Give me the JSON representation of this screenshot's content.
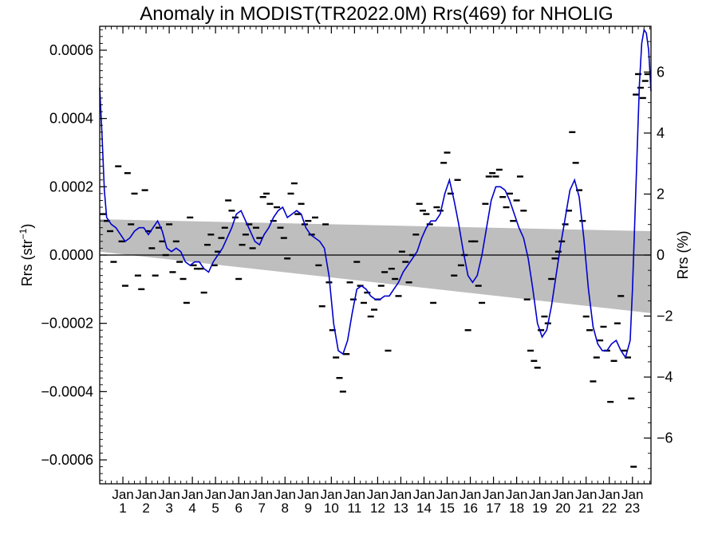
{
  "chart_data": {
    "type": "scatter",
    "title": "Anomaly in MODIST(TR2022.0M) Rrs(469) for NHOLIG",
    "ylabel_left_base": "Rrs (str",
    "ylabel_left_sup": "−1",
    "ylabel_left_end": ")",
    "ylabel_right": "Rrs (%)",
    "ylim_left": [
      -0.00067,
      0.00067
    ],
    "ylim_right": [
      -7.5,
      7.5
    ],
    "xlim": [
      0,
      23.8
    ],
    "yticks_left": [
      {
        "v": 0.0006,
        "label": "0.0006"
      },
      {
        "v": 0.0004,
        "label": "0.0004"
      },
      {
        "v": 0.0002,
        "label": "0.0002"
      },
      {
        "v": 0.0,
        "label": "0.0000"
      },
      {
        "v": -0.0002,
        "label": "−0.0002"
      },
      {
        "v": -0.0004,
        "label": "−0.0004"
      },
      {
        "v": -0.0006,
        "label": "−0.0006"
      }
    ],
    "yticks_right": [
      {
        "v": 6,
        "label": "6"
      },
      {
        "v": 4,
        "label": "4"
      },
      {
        "v": 2,
        "label": "2"
      },
      {
        "v": 0,
        "label": "0"
      },
      {
        "v": -2,
        "label": "−2"
      },
      {
        "v": -4,
        "label": "−4"
      },
      {
        "v": -6,
        "label": "−6"
      }
    ],
    "xticks": [
      {
        "x": 1,
        "month": "Jan",
        "year": "1"
      },
      {
        "x": 2,
        "month": "Jan",
        "year": "2"
      },
      {
        "x": 3,
        "month": "Jan",
        "year": "3"
      },
      {
        "x": 4,
        "month": "Jan",
        "year": "4"
      },
      {
        "x": 5,
        "month": "Jan",
        "year": "5"
      },
      {
        "x": 6,
        "month": "Jan",
        "year": "6"
      },
      {
        "x": 7,
        "month": "Jan",
        "year": "7"
      },
      {
        "x": 8,
        "month": "Jan",
        "year": "8"
      },
      {
        "x": 9,
        "month": "Jan",
        "year": "9"
      },
      {
        "x": 10,
        "month": "Jan",
        "year": "10"
      },
      {
        "x": 11,
        "month": "Jan",
        "year": "11"
      },
      {
        "x": 12,
        "month": "Jan",
        "year": "12"
      },
      {
        "x": 13,
        "month": "Jan",
        "year": "13"
      },
      {
        "x": 14,
        "month": "Jan",
        "year": "14"
      },
      {
        "x": 15,
        "month": "Jan",
        "year": "15"
      },
      {
        "x": 16,
        "month": "Jan",
        "year": "16"
      },
      {
        "x": 17,
        "month": "Jan",
        "year": "17"
      },
      {
        "x": 18,
        "month": "Jan",
        "year": "18"
      },
      {
        "x": 19,
        "month": "Jan",
        "year": "19"
      },
      {
        "x": 20,
        "month": "Jan",
        "year": "20"
      },
      {
        "x": 21,
        "month": "Jan",
        "year": "21"
      },
      {
        "x": 22,
        "month": "Jan",
        "year": "22"
      },
      {
        "x": 23,
        "month": "Jan",
        "year": "23"
      }
    ],
    "band": {
      "upper": [
        [
          0,
          0.000105
        ],
        [
          23.8,
          7e-05
        ]
      ],
      "lower": [
        [
          0,
          1e-05
        ],
        [
          23.8,
          -0.00017
        ]
      ],
      "color": "#bebebe"
    },
    "zero_line": 0,
    "colors": {
      "smooth_line": "#0000cc",
      "points": "#000000",
      "axes": "#000000"
    },
    "smooth_line": [
      [
        0.0,
        0.00049
      ],
      [
        0.1,
        0.00035
      ],
      [
        0.2,
        0.00019
      ],
      [
        0.3,
        0.00011
      ],
      [
        0.5,
        9e-05
      ],
      [
        0.7,
        8e-05
      ],
      [
        0.9,
        6e-05
      ],
      [
        1.1,
        4e-05
      ],
      [
        1.3,
        5e-05
      ],
      [
        1.5,
        7e-05
      ],
      [
        1.7,
        8e-05
      ],
      [
        1.9,
        8e-05
      ],
      [
        2.1,
        6e-05
      ],
      [
        2.3,
        8e-05
      ],
      [
        2.5,
        0.0001
      ],
      [
        2.7,
        7e-05
      ],
      [
        2.9,
        2e-05
      ],
      [
        3.1,
        1e-05
      ],
      [
        3.3,
        2e-05
      ],
      [
        3.5,
        1e-05
      ],
      [
        3.7,
        -2e-05
      ],
      [
        3.9,
        -3e-05
      ],
      [
        4.1,
        -2e-05
      ],
      [
        4.3,
        -2e-05
      ],
      [
        4.5,
        -4e-05
      ],
      [
        4.7,
        -5e-05
      ],
      [
        4.9,
        -2e-05
      ],
      [
        5.1,
        0.0
      ],
      [
        5.3,
        2e-05
      ],
      [
        5.5,
        5e-05
      ],
      [
        5.7,
        8e-05
      ],
      [
        5.9,
        0.00012
      ],
      [
        6.1,
        0.00013
      ],
      [
        6.3,
        0.0001
      ],
      [
        6.5,
        7e-05
      ],
      [
        6.7,
        4e-05
      ],
      [
        6.9,
        3e-05
      ],
      [
        7.1,
        6e-05
      ],
      [
        7.3,
        8e-05
      ],
      [
        7.5,
        0.00011
      ],
      [
        7.7,
        0.00013
      ],
      [
        7.9,
        0.00014
      ],
      [
        8.1,
        0.00011
      ],
      [
        8.3,
        0.00012
      ],
      [
        8.5,
        0.00013
      ],
      [
        8.7,
        0.00012
      ],
      [
        8.9,
        8e-05
      ],
      [
        9.1,
        6e-05
      ],
      [
        9.3,
        5e-05
      ],
      [
        9.5,
        4e-05
      ],
      [
        9.7,
        2e-05
      ],
      [
        9.9,
        -6e-05
      ],
      [
        10.1,
        -0.0002
      ],
      [
        10.3,
        -0.00028
      ],
      [
        10.5,
        -0.00029
      ],
      [
        10.7,
        -0.00025
      ],
      [
        10.9,
        -0.00017
      ],
      [
        11.1,
        -0.0001
      ],
      [
        11.3,
        -9e-05
      ],
      [
        11.5,
        -0.0001
      ],
      [
        11.7,
        -0.00012
      ],
      [
        11.9,
        -0.00013
      ],
      [
        12.1,
        -0.00013
      ],
      [
        12.3,
        -0.00012
      ],
      [
        12.5,
        -0.00012
      ],
      [
        12.7,
        -0.0001
      ],
      [
        12.9,
        -8e-05
      ],
      [
        13.1,
        -5e-05
      ],
      [
        13.3,
        -3e-05
      ],
      [
        13.5,
        -1e-05
      ],
      [
        13.7,
        1e-05
      ],
      [
        13.9,
        5e-05
      ],
      [
        14.1,
        8e-05
      ],
      [
        14.3,
        0.0001
      ],
      [
        14.5,
        0.0001
      ],
      [
        14.7,
        0.00012
      ],
      [
        14.9,
        0.00018
      ],
      [
        15.1,
        0.00022
      ],
      [
        15.3,
        0.00016
      ],
      [
        15.5,
        9e-05
      ],
      [
        15.7,
        1e-05
      ],
      [
        15.9,
        -6e-05
      ],
      [
        16.1,
        -8e-05
      ],
      [
        16.3,
        -6e-05
      ],
      [
        16.5,
        0.0
      ],
      [
        16.7,
        8e-05
      ],
      [
        16.9,
        0.00016
      ],
      [
        17.1,
        0.0002
      ],
      [
        17.3,
        0.0002
      ],
      [
        17.5,
        0.00019
      ],
      [
        17.7,
        0.00016
      ],
      [
        17.9,
        0.00012
      ],
      [
        18.1,
        8e-05
      ],
      [
        18.3,
        5e-05
      ],
      [
        18.5,
        -1e-05
      ],
      [
        18.7,
        -0.0001
      ],
      [
        18.9,
        -0.0002
      ],
      [
        19.1,
        -0.00024
      ],
      [
        19.3,
        -0.00022
      ],
      [
        19.5,
        -0.00015
      ],
      [
        19.7,
        -6e-05
      ],
      [
        19.9,
        3e-05
      ],
      [
        20.1,
        0.00011
      ],
      [
        20.3,
        0.00019
      ],
      [
        20.5,
        0.00022
      ],
      [
        20.7,
        0.00017
      ],
      [
        20.9,
        5e-05
      ],
      [
        21.1,
        -0.0001
      ],
      [
        21.3,
        -0.00021
      ],
      [
        21.5,
        -0.00026
      ],
      [
        21.7,
        -0.00028
      ],
      [
        21.9,
        -0.00028
      ],
      [
        22.1,
        -0.00026
      ],
      [
        22.3,
        -0.00025
      ],
      [
        22.5,
        -0.00028
      ],
      [
        22.7,
        -0.0003
      ],
      [
        22.9,
        -0.00025
      ],
      [
        23.0,
        -0.0001
      ],
      [
        23.1,
        0.0001
      ],
      [
        23.2,
        0.0003
      ],
      [
        23.3,
        0.0005
      ],
      [
        23.4,
        0.00062
      ],
      [
        23.5,
        0.00066
      ],
      [
        23.6,
        0.00065
      ],
      [
        23.7,
        0.0006
      ],
      [
        23.8,
        0.00048
      ]
    ],
    "points": [
      [
        0.15,
        0.00012
      ],
      [
        0.3,
        0.0001
      ],
      [
        0.45,
        7e-05
      ],
      [
        0.6,
        -2e-05
      ],
      [
        0.8,
        0.00026
      ],
      [
        0.95,
        4e-05
      ],
      [
        1.1,
        -9e-05
      ],
      [
        1.2,
        0.00024
      ],
      [
        1.35,
        9e-05
      ],
      [
        1.5,
        0.00018
      ],
      [
        1.65,
        -6e-05
      ],
      [
        1.8,
        -0.0001
      ],
      [
        1.95,
        0.00019
      ],
      [
        2.1,
        7e-05
      ],
      [
        2.25,
        2e-05
      ],
      [
        2.4,
        -6e-05
      ],
      [
        2.55,
        8e-05
      ],
      [
        2.7,
        4e-05
      ],
      [
        2.85,
        0.0
      ],
      [
        3.0,
        9e-05
      ],
      [
        3.15,
        -5e-05
      ],
      [
        3.3,
        4e-05
      ],
      [
        3.45,
        -2e-05
      ],
      [
        3.6,
        -7e-05
      ],
      [
        3.75,
        -0.00014
      ],
      [
        3.9,
        0.00011
      ],
      [
        4.05,
        -3e-05
      ],
      [
        4.2,
        -4e-05
      ],
      [
        4.35,
        -4e-05
      ],
      [
        4.5,
        -0.00011
      ],
      [
        4.65,
        3e-05
      ],
      [
        4.8,
        6e-05
      ],
      [
        4.95,
        -3e-05
      ],
      [
        5.1,
        1e-05
      ],
      [
        5.25,
        5e-05
      ],
      [
        5.4,
        8e-05
      ],
      [
        5.55,
        0.00016
      ],
      [
        5.7,
        0.00013
      ],
      [
        5.85,
        0.00011
      ],
      [
        6.0,
        -7e-05
      ],
      [
        6.15,
        3e-05
      ],
      [
        6.3,
        6e-05
      ],
      [
        6.45,
        9e-05
      ],
      [
        6.6,
        2e-05
      ],
      [
        6.75,
        8e-05
      ],
      [
        6.9,
        5e-05
      ],
      [
        7.05,
        0.00017
      ],
      [
        7.2,
        0.00018
      ],
      [
        7.35,
        0.00015
      ],
      [
        7.5,
        0.0001
      ],
      [
        7.65,
        0.00014
      ],
      [
        7.8,
        8e-05
      ],
      [
        7.95,
        5e-05
      ],
      [
        8.1,
        -1e-05
      ],
      [
        8.25,
        0.00018
      ],
      [
        8.4,
        0.00021
      ],
      [
        8.55,
        0.00012
      ],
      [
        8.7,
        0.00015
      ],
      [
        8.85,
        9e-05
      ],
      [
        9.0,
        0.0001
      ],
      [
        9.15,
        6e-05
      ],
      [
        9.3,
        0.00011
      ],
      [
        9.45,
        -3e-05
      ],
      [
        9.6,
        -0.00015
      ],
      [
        9.75,
        9e-05
      ],
      [
        9.9,
        -8e-05
      ],
      [
        10.05,
        -0.00022
      ],
      [
        10.2,
        -0.0003
      ],
      [
        10.35,
        -0.00036
      ],
      [
        10.5,
        -0.0004
      ],
      [
        10.65,
        -0.00029
      ],
      [
        10.8,
        -8e-05
      ],
      [
        10.95,
        -0.00013
      ],
      [
        11.1,
        -2e-05
      ],
      [
        11.25,
        -9e-05
      ],
      [
        11.4,
        -0.00014
      ],
      [
        11.55,
        -0.00011
      ],
      [
        11.7,
        -0.00018
      ],
      [
        11.85,
        -0.00016
      ],
      [
        12.0,
        -0.00013
      ],
      [
        12.15,
        -9e-05
      ],
      [
        12.3,
        -5e-05
      ],
      [
        12.45,
        -0.00028
      ],
      [
        12.6,
        -4e-05
      ],
      [
        12.75,
        -7e-05
      ],
      [
        12.9,
        -0.00012
      ],
      [
        13.05,
        1e-05
      ],
      [
        13.2,
        -2e-05
      ],
      [
        13.35,
        -8e-05
      ],
      [
        13.5,
        0.0
      ],
      [
        13.65,
        6e-05
      ],
      [
        13.8,
        0.00015
      ],
      [
        13.95,
        0.00013
      ],
      [
        14.1,
        0.00012
      ],
      [
        14.25,
        9e-05
      ],
      [
        14.4,
        -0.00014
      ],
      [
        14.55,
        0.00014
      ],
      [
        14.7,
        0.00013
      ],
      [
        14.85,
        0.00027
      ],
      [
        15.0,
        0.0003
      ],
      [
        15.15,
        0.00018
      ],
      [
        15.3,
        -6e-05
      ],
      [
        15.45,
        0.00022
      ],
      [
        15.6,
        -3e-05
      ],
      [
        15.75,
        0.0
      ],
      [
        15.9,
        -0.00022
      ],
      [
        16.05,
        4e-05
      ],
      [
        16.2,
        4e-05
      ],
      [
        16.35,
        -9e-05
      ],
      [
        16.5,
        -0.00014
      ],
      [
        16.65,
        0.00015
      ],
      [
        16.8,
        0.00023
      ],
      [
        16.95,
        0.00024
      ],
      [
        17.1,
        0.00023
      ],
      [
        17.25,
        0.00025
      ],
      [
        17.4,
        0.00017
      ],
      [
        17.55,
        0.00014
      ],
      [
        17.7,
        0.00018
      ],
      [
        17.85,
        0.0001
      ],
      [
        18.0,
        0.00016
      ],
      [
        18.15,
        0.00023
      ],
      [
        18.3,
        0.00013
      ],
      [
        18.45,
        -0.00013
      ],
      [
        18.6,
        -0.00028
      ],
      [
        18.75,
        -0.00031
      ],
      [
        18.9,
        -0.00033
      ],
      [
        19.05,
        -0.00022
      ],
      [
        19.2,
        -0.00018
      ],
      [
        19.35,
        -0.0002
      ],
      [
        19.5,
        -7e-05
      ],
      [
        19.65,
        -1e-05
      ],
      [
        19.8,
        1e-05
      ],
      [
        19.95,
        4e-05
      ],
      [
        20.1,
        9e-05
      ],
      [
        20.25,
        0.00013
      ],
      [
        20.4,
        0.00036
      ],
      [
        20.55,
        0.00027
      ],
      [
        20.7,
        0.00019
      ],
      [
        20.85,
        0.0001
      ],
      [
        21.0,
        -0.00018
      ],
      [
        21.15,
        -0.00022
      ],
      [
        21.3,
        -0.00037
      ],
      [
        21.45,
        -0.0003
      ],
      [
        21.6,
        -0.00025
      ],
      [
        21.75,
        -0.00021
      ],
      [
        21.9,
        -0.00028
      ],
      [
        22.05,
        -0.00043
      ],
      [
        22.2,
        -0.00031
      ],
      [
        22.35,
        -0.0002
      ],
      [
        22.5,
        -0.00012
      ],
      [
        22.65,
        -0.00028
      ],
      [
        22.8,
        -0.0003
      ],
      [
        22.95,
        -0.00042
      ],
      [
        23.05,
        -0.00062
      ],
      [
        23.15,
        0.00047
      ],
      [
        23.25,
        0.00053
      ],
      [
        23.35,
        0.00049
      ],
      [
        23.45,
        0.00046
      ],
      [
        23.55,
        0.00051
      ],
      [
        23.65,
        0.00053
      ]
    ]
  }
}
